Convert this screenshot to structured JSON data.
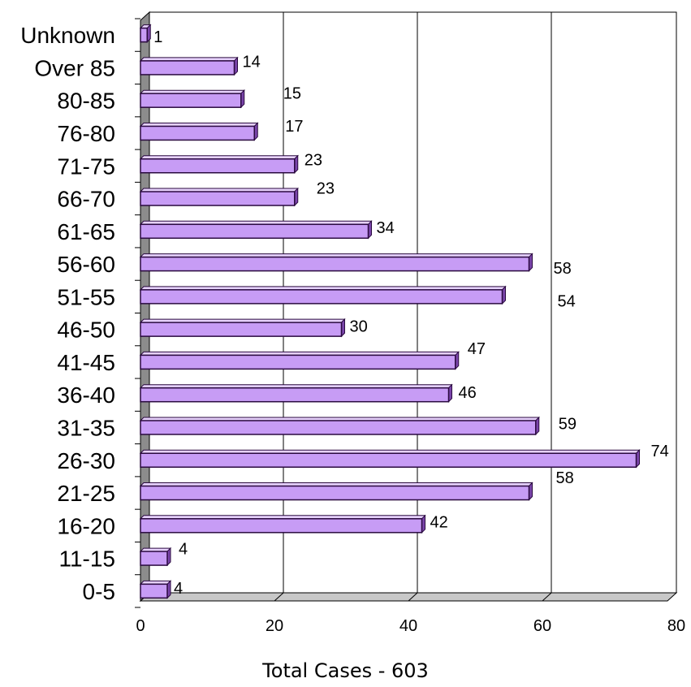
{
  "chart_data": {
    "type": "bar",
    "orientation": "horizontal",
    "categories": [
      "Unknown",
      "Over 85",
      "80-85",
      "76-80",
      "71-75",
      "66-70",
      "61-65",
      "56-60",
      "51-55",
      "46-50",
      "41-45",
      "36-40",
      "31-35",
      "26-30",
      "21-25",
      "16-20",
      "11-15",
      "0-5"
    ],
    "values": [
      1,
      14,
      15,
      17,
      23,
      23,
      34,
      58,
      54,
      30,
      47,
      46,
      59,
      74,
      58,
      42,
      4,
      4
    ],
    "xlabel": "Total Cases - 603",
    "ylabel": "",
    "title": "",
    "xlim": [
      0,
      80
    ],
    "x_ticks": [
      "0",
      "20",
      "40",
      "60",
      "80"
    ],
    "grid": "vertical",
    "legend": "none",
    "colors": {
      "bar_front": "#c79cf5",
      "bar_top": "#e6d1fb",
      "bar_side": "#7a45aa",
      "bar_outline": "#2a0a3f",
      "wall": "#8c8c8c",
      "floor": "#c8c8c8",
      "gridline": "#000000"
    }
  }
}
